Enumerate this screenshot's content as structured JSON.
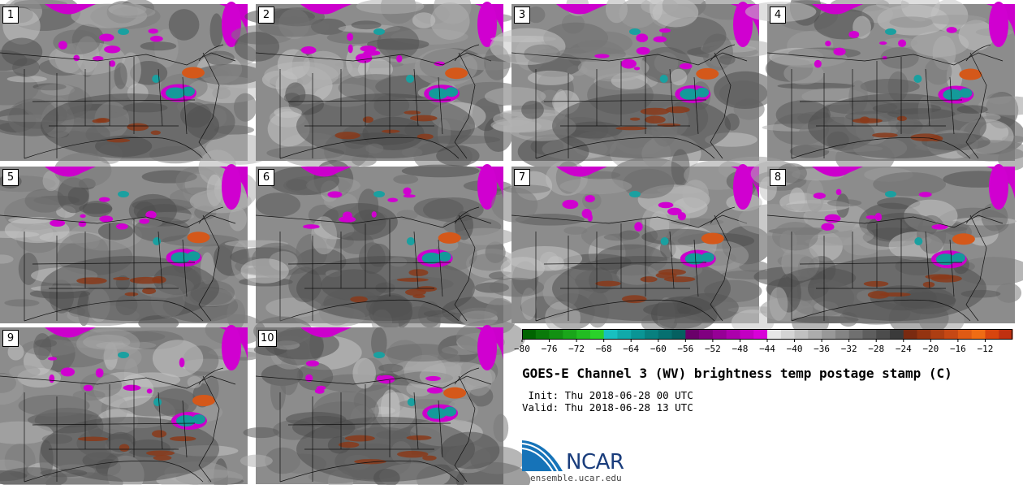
{
  "panels": [
    {
      "label": "1"
    },
    {
      "label": "2"
    },
    {
      "label": "3"
    },
    {
      "label": "4"
    },
    {
      "label": "5"
    },
    {
      "label": "6"
    },
    {
      "label": "7"
    },
    {
      "label": "8"
    },
    {
      "label": "9"
    },
    {
      "label": "10"
    }
  ],
  "colorbar": {
    "ticks": [
      "−80",
      "−76",
      "−72",
      "−68",
      "−64",
      "−60",
      "−56",
      "−52",
      "−48",
      "−44",
      "−40",
      "−36",
      "−32",
      "−28",
      "−24",
      "−20",
      "−16",
      "−12"
    ],
    "colors": [
      "#006400",
      "#0a7a0a",
      "#129012",
      "#1aa61a",
      "#22bc22",
      "#2ad22a",
      "#18c0c0",
      "#10aaaa",
      "#0a9595",
      "#08807f",
      "#067070",
      "#056060",
      "#6a006a",
      "#800080",
      "#960096",
      "#ac00ac",
      "#c200c2",
      "#d800d8",
      "#e8e8e8",
      "#d4d4d4",
      "#c0c0c0",
      "#acacac",
      "#989898",
      "#848484",
      "#707070",
      "#5e5e5e",
      "#4c4c4c",
      "#3a3a3a",
      "#7a2a10",
      "#943410",
      "#ad3e12",
      "#c64814",
      "#df5a14",
      "#ef6c14",
      "#d8450e",
      "#c03010"
    ]
  },
  "title": "GOES-E Channel 3 (WV) brightness temp postage stamp (C)",
  "init": " Init: Thu 2018-06-28 00 UTC",
  "valid": "Valid: Thu 2018-06-28 13 UTC",
  "logo": {
    "name": "NCAR",
    "url": "ensemble.ucar.edu"
  }
}
